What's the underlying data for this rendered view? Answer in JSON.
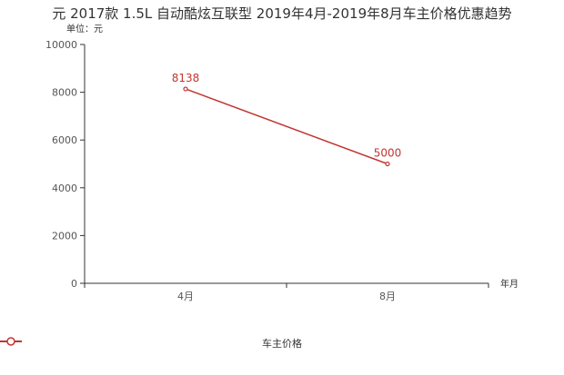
{
  "chart_data": {
    "type": "line",
    "title": "元 2017款 1.5L 自动酷炫互联型 2019年4月-2019年8月车主价格优惠趋势",
    "ylabel": "单位：元",
    "xlabel": "年月",
    "categories": [
      "4月",
      "8月"
    ],
    "series": [
      {
        "name": "车主价格",
        "values": [
          8138,
          5000
        ],
        "color": "#c23531"
      }
    ],
    "ylim": [
      0,
      10000
    ],
    "yticks": [
      0,
      2000,
      4000,
      6000,
      8000,
      10000
    ],
    "grid": false,
    "legend_position": "bottom"
  }
}
